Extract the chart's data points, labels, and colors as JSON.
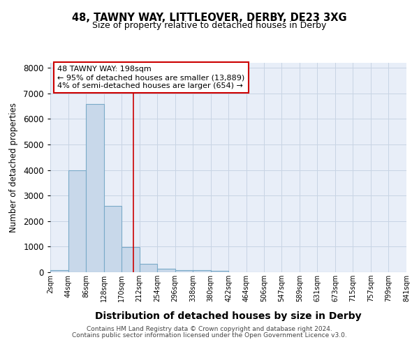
{
  "title": "48, TAWNY WAY, LITTLEOVER, DERBY, DE23 3XG",
  "subtitle": "Size of property relative to detached houses in Derby",
  "xlabel": "Distribution of detached houses by size in Derby",
  "ylabel": "Number of detached properties",
  "footer1": "Contains HM Land Registry data © Crown copyright and database right 2024.",
  "footer2": "Contains public sector information licensed under the Open Government Licence v3.0.",
  "bin_edges": [
    2,
    44,
    86,
    128,
    170,
    212,
    254,
    296,
    338,
    380,
    422,
    464,
    506,
    547,
    589,
    631,
    673,
    715,
    757,
    799,
    841
  ],
  "bar_heights": [
    75,
    4000,
    6600,
    2600,
    975,
    325,
    125,
    75,
    75,
    60,
    0,
    0,
    0,
    0,
    0,
    0,
    0,
    0,
    0,
    0
  ],
  "bar_color": "#c8d8ea",
  "bar_edge_color": "#7aaac8",
  "vline_x": 198,
  "vline_color": "#cc0000",
  "annotation_line1": "48 TAWNY WAY: 198sqm",
  "annotation_line2": "← 95% of detached houses are smaller (13,889)",
  "annotation_line3": "4% of semi-detached houses are larger (654) →",
  "annotation_box_color": "#cc0000",
  "ylim": [
    0,
    8200
  ],
  "yticks": [
    0,
    1000,
    2000,
    3000,
    4000,
    5000,
    6000,
    7000,
    8000
  ],
  "xtick_labels": [
    "2sqm",
    "44sqm",
    "86sqm",
    "128sqm",
    "170sqm",
    "212sqm",
    "254sqm",
    "296sqm",
    "338sqm",
    "380sqm",
    "422sqm",
    "464sqm",
    "506sqm",
    "547sqm",
    "589sqm",
    "631sqm",
    "673sqm",
    "715sqm",
    "757sqm",
    "799sqm",
    "841sqm"
  ],
  "grid_color": "#c8d4e4",
  "background_color": "#e8eef8"
}
